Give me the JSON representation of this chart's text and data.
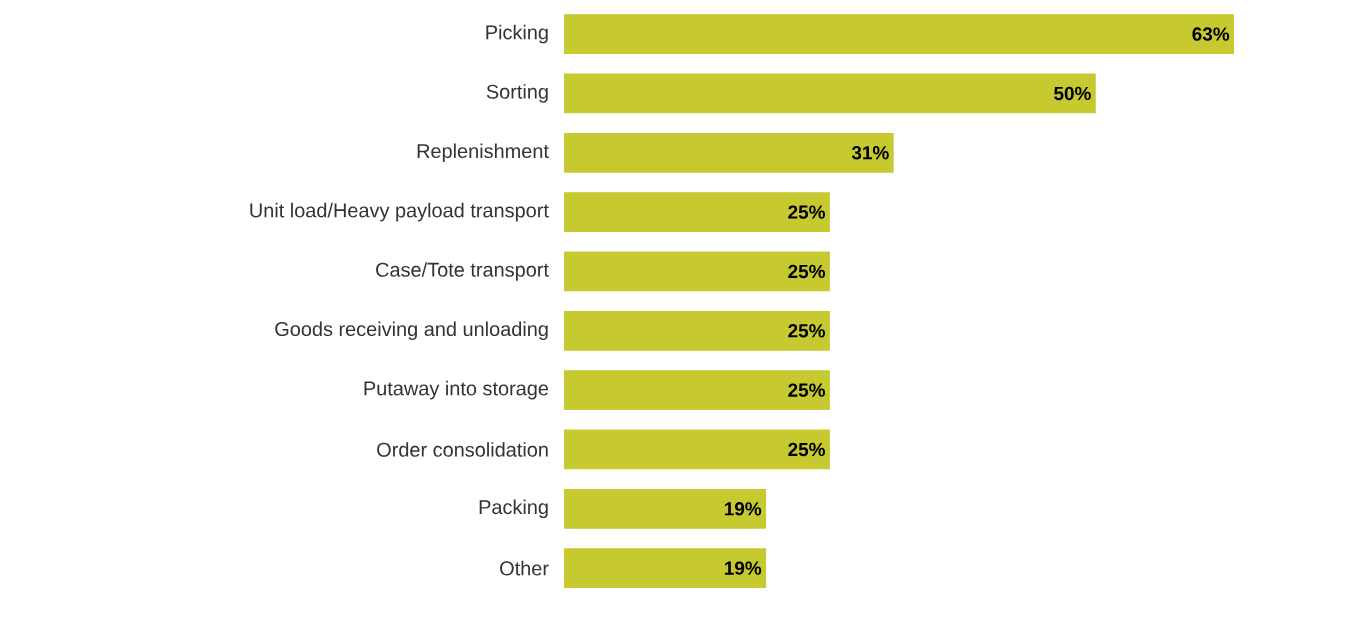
{
  "chart_data": {
    "type": "bar",
    "orientation": "horizontal",
    "color": "#c6c930",
    "categories": [
      "Picking",
      "Sorting",
      "Replenishment",
      "Unit load/Heavy payload transport",
      "Case/Tote transport",
      "Goods receiving and unloading",
      "Putaway into storage",
      "Order consolidation",
      "Packing",
      "Other"
    ],
    "values": [
      63,
      50,
      31,
      25,
      25,
      25,
      25,
      25,
      19,
      19
    ],
    "value_labels": [
      "63%",
      "50%",
      "31%",
      "25%",
      "25%",
      "25%",
      "25%",
      "25%",
      "19%",
      "19%"
    ]
  }
}
